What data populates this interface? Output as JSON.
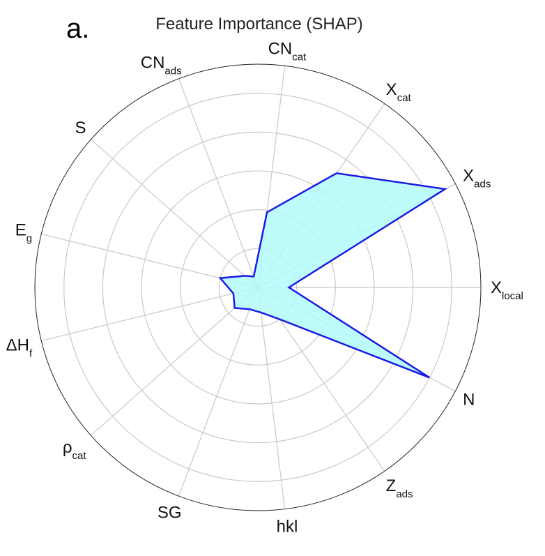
{
  "chart_data": {
    "type": "radar",
    "title": "Feature Importance (SHAP)",
    "panel_label": "a.",
    "categories": [
      [
        "X",
        "local"
      ],
      [
        "X",
        "ads"
      ],
      [
        "X",
        "cat"
      ],
      [
        "CN",
        "cat"
      ],
      [
        "CN",
        "ads"
      ],
      [
        "S"
      ],
      [
        "E",
        "g"
      ],
      [
        "ΔH",
        "f"
      ],
      [
        "ρ",
        "cat"
      ],
      [
        "SG"
      ],
      [
        "hkl"
      ],
      [
        "Z",
        "ads"
      ],
      [
        "N"
      ]
    ],
    "values": [
      0.16,
      1.09,
      0.715,
      0.39,
      0.06,
      0.09,
      0.2,
      0.13,
      0.16,
      0.12,
      0.13,
      0.2,
      1.0
    ],
    "color": "#1a1ae6",
    "fill_color": "#b3fafa",
    "ylim": [
      0,
      1.15
    ],
    "yticks": [
      0.2,
      0.4,
      0.6,
      0.8,
      1.0
    ],
    "grid": true
  }
}
